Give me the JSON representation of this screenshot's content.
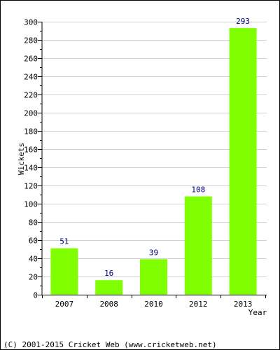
{
  "chart_data": {
    "type": "bar",
    "categories": [
      "2007",
      "2008",
      "2010",
      "2012",
      "2013"
    ],
    "values": [
      51,
      16,
      39,
      108,
      293
    ],
    "xlabel": "Year",
    "ylabel": "Wickets",
    "ylim": [
      0,
      300
    ],
    "yticks": [
      0,
      20,
      40,
      60,
      80,
      100,
      120,
      140,
      160,
      180,
      200,
      220,
      240,
      260,
      280,
      300
    ],
    "grid": true,
    "bar_color": "#7fff00",
    "value_label_color": "#000080"
  },
  "footer": {
    "copyright": "(C) 2001-2015 Cricket Web (www.cricketweb.net)"
  }
}
